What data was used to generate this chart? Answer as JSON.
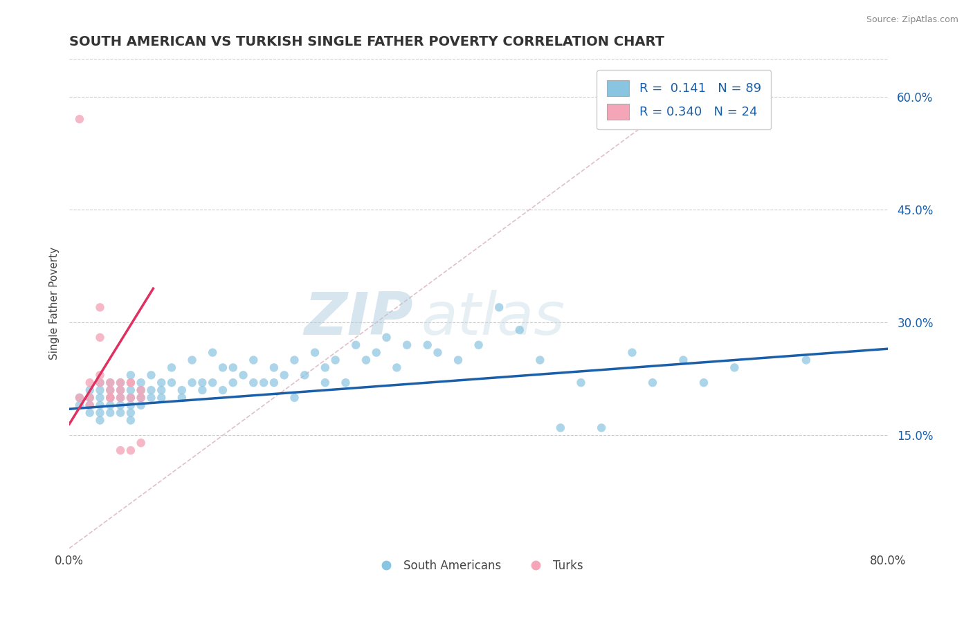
{
  "title": "SOUTH AMERICAN VS TURKISH SINGLE FATHER POVERTY CORRELATION CHART",
  "source": "Source: ZipAtlas.com",
  "ylabel": "Single Father Poverty",
  "legend_labels": [
    "South Americans",
    "Turks"
  ],
  "legend_r": [
    "0.141",
    "0.340"
  ],
  "legend_n": [
    "89",
    "24"
  ],
  "blue_color": "#89c4e1",
  "pink_color": "#f4a6b8",
  "blue_line_color": "#1a5fa8",
  "pink_line_color": "#e03060",
  "diag_line_color": "#e0c0c8",
  "legend_text_color": "#1a5fa8",
  "watermark_zip_color": "#b8cfe0",
  "watermark_atlas_color": "#c8d8e8",
  "xlim": [
    0.0,
    0.8
  ],
  "ylim": [
    0.0,
    0.65
  ],
  "right_yticks": [
    0.15,
    0.3,
    0.45,
    0.6
  ],
  "right_ytick_labels": [
    "15.0%",
    "30.0%",
    "45.0%",
    "60.0%"
  ],
  "blue_scatter_x": [
    0.01,
    0.01,
    0.02,
    0.02,
    0.02,
    0.02,
    0.03,
    0.03,
    0.03,
    0.03,
    0.03,
    0.03,
    0.04,
    0.04,
    0.04,
    0.04,
    0.04,
    0.05,
    0.05,
    0.05,
    0.05,
    0.05,
    0.06,
    0.06,
    0.06,
    0.06,
    0.06,
    0.06,
    0.07,
    0.07,
    0.07,
    0.07,
    0.08,
    0.08,
    0.08,
    0.09,
    0.09,
    0.09,
    0.1,
    0.1,
    0.11,
    0.11,
    0.12,
    0.12,
    0.13,
    0.13,
    0.14,
    0.14,
    0.15,
    0.15,
    0.16,
    0.16,
    0.17,
    0.18,
    0.18,
    0.19,
    0.2,
    0.2,
    0.21,
    0.22,
    0.22,
    0.23,
    0.24,
    0.25,
    0.25,
    0.26,
    0.27,
    0.28,
    0.29,
    0.3,
    0.31,
    0.32,
    0.33,
    0.35,
    0.36,
    0.38,
    0.4,
    0.42,
    0.44,
    0.46,
    0.48,
    0.5,
    0.52,
    0.55,
    0.57,
    0.6,
    0.62,
    0.65,
    0.72
  ],
  "blue_scatter_y": [
    0.2,
    0.19,
    0.21,
    0.19,
    0.2,
    0.18,
    0.21,
    0.2,
    0.22,
    0.19,
    0.18,
    0.17,
    0.2,
    0.19,
    0.21,
    0.18,
    0.22,
    0.2,
    0.19,
    0.21,
    0.18,
    0.22,
    0.2,
    0.19,
    0.21,
    0.18,
    0.23,
    0.17,
    0.21,
    0.2,
    0.22,
    0.19,
    0.23,
    0.21,
    0.2,
    0.22,
    0.21,
    0.2,
    0.22,
    0.24,
    0.21,
    0.2,
    0.25,
    0.22,
    0.22,
    0.21,
    0.26,
    0.22,
    0.24,
    0.21,
    0.22,
    0.24,
    0.23,
    0.25,
    0.22,
    0.22,
    0.24,
    0.22,
    0.23,
    0.25,
    0.2,
    0.23,
    0.26,
    0.22,
    0.24,
    0.25,
    0.22,
    0.27,
    0.25,
    0.26,
    0.28,
    0.24,
    0.27,
    0.27,
    0.26,
    0.25,
    0.27,
    0.32,
    0.29,
    0.25,
    0.16,
    0.22,
    0.16,
    0.26,
    0.22,
    0.25,
    0.22,
    0.24,
    0.25
  ],
  "pink_scatter_x": [
    0.01,
    0.01,
    0.02,
    0.02,
    0.02,
    0.03,
    0.03,
    0.03,
    0.03,
    0.04,
    0.04,
    0.04,
    0.04,
    0.05,
    0.05,
    0.05,
    0.05,
    0.06,
    0.06,
    0.06,
    0.06,
    0.07,
    0.07,
    0.07
  ],
  "pink_scatter_y": [
    0.57,
    0.2,
    0.22,
    0.2,
    0.19,
    0.22,
    0.23,
    0.28,
    0.32,
    0.2,
    0.21,
    0.22,
    0.2,
    0.21,
    0.2,
    0.22,
    0.13,
    0.22,
    0.22,
    0.2,
    0.13,
    0.21,
    0.14,
    0.2
  ],
  "blue_trend_x": [
    0.0,
    0.8
  ],
  "blue_trend_y": [
    0.185,
    0.265
  ],
  "pink_trend_x": [
    0.0,
    0.082
  ],
  "pink_trend_y": [
    0.165,
    0.345
  ],
  "diag_line_x": [
    0.0,
    0.6
  ],
  "diag_line_y": [
    0.0,
    0.6
  ]
}
